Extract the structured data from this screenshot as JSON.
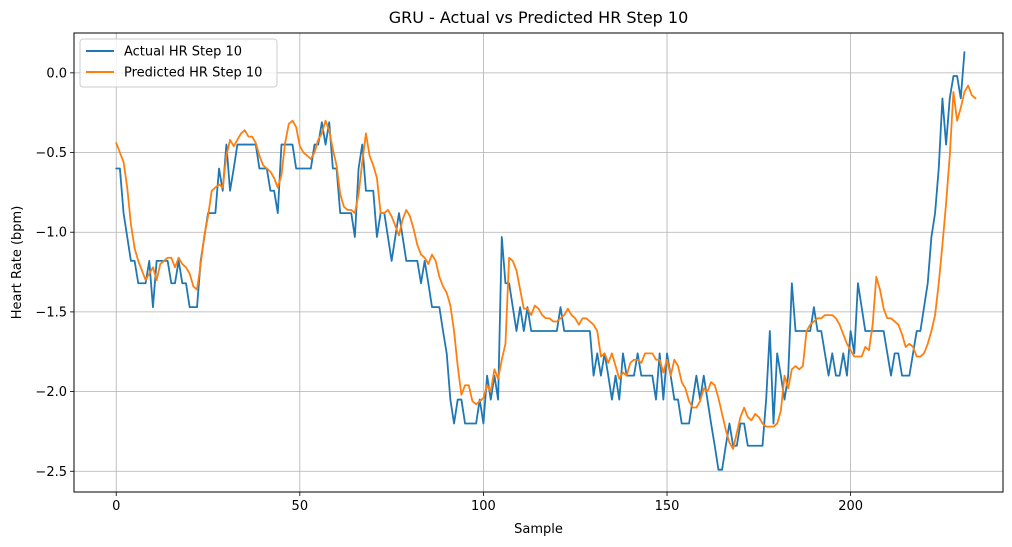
{
  "chart_data": {
    "type": "line",
    "title": "GRU - Actual vs Predicted HR Step 10",
    "xlabel": "Sample",
    "ylabel": "Heart Rate (bpm)",
    "xlim": [
      -11.5,
      241.5
    ],
    "ylim": [
      -2.63,
      0.25
    ],
    "xticks": [
      0,
      50,
      100,
      150,
      200
    ],
    "yticks": [
      -2.5,
      -2.0,
      -1.5,
      -1.0,
      -0.5,
      0.0
    ],
    "ytick_labels": [
      "−2.5",
      "−2.0",
      "−1.5",
      "−1.0",
      "−0.5",
      "0.0"
    ],
    "grid": true,
    "legend_position": "top-left",
    "series": [
      {
        "name": "Actual HR Step 10",
        "color": "#1f77b4",
        "values": [
          -0.6,
          -0.6,
          -0.88,
          -1.03,
          -1.18,
          -1.18,
          -1.32,
          -1.32,
          -1.32,
          -1.18,
          -1.47,
          -1.18,
          -1.18,
          -1.18,
          -1.18,
          -1.32,
          -1.32,
          -1.18,
          -1.32,
          -1.32,
          -1.47,
          -1.47,
          -1.47,
          -1.18,
          -1.03,
          -0.88,
          -0.88,
          -0.88,
          -0.6,
          -0.74,
          -0.45,
          -0.74,
          -0.6,
          -0.45,
          -0.45,
          -0.45,
          -0.45,
          -0.45,
          -0.45,
          -0.6,
          -0.6,
          -0.6,
          -0.74,
          -0.74,
          -0.88,
          -0.45,
          -0.45,
          -0.45,
          -0.45,
          -0.6,
          -0.6,
          -0.6,
          -0.6,
          -0.6,
          -0.45,
          -0.45,
          -0.31,
          -0.45,
          -0.31,
          -0.6,
          -0.6,
          -0.88,
          -0.88,
          -0.88,
          -0.88,
          -1.03,
          -0.6,
          -0.45,
          -0.74,
          -0.74,
          -0.74,
          -1.03,
          -0.88,
          -0.88,
          -1.03,
          -1.18,
          -1.03,
          -0.88,
          -1.03,
          -1.18,
          -1.18,
          -1.18,
          -1.18,
          -1.32,
          -1.18,
          -1.32,
          -1.47,
          -1.47,
          -1.47,
          -1.62,
          -1.76,
          -2.05,
          -2.2,
          -2.05,
          -2.05,
          -2.2,
          -2.2,
          -2.2,
          -2.2,
          -2.05,
          -2.2,
          -1.9,
          -2.05,
          -1.9,
          -2.05,
          -1.03,
          -1.32,
          -1.32,
          -1.47,
          -1.62,
          -1.47,
          -1.62,
          -1.47,
          -1.62,
          -1.62,
          -1.62,
          -1.62,
          -1.62,
          -1.62,
          -1.62,
          -1.62,
          -1.47,
          -1.62,
          -1.62,
          -1.62,
          -1.62,
          -1.62,
          -1.62,
          -1.62,
          -1.62,
          -1.9,
          -1.76,
          -1.9,
          -1.76,
          -1.9,
          -2.05,
          -1.9,
          -2.05,
          -1.76,
          -1.9,
          -1.9,
          -1.9,
          -1.76,
          -1.9,
          -1.9,
          -1.9,
          -1.9,
          -2.05,
          -1.76,
          -2.05,
          -1.76,
          -1.9,
          -2.05,
          -2.05,
          -2.2,
          -2.2,
          -2.2,
          -2.05,
          -1.9,
          -2.05,
          -1.9,
          -2.05,
          -2.2,
          -2.34,
          -2.49,
          -2.49,
          -2.34,
          -2.2,
          -2.34,
          -2.34,
          -2.2,
          -2.2,
          -2.34,
          -2.34,
          -2.34,
          -2.34,
          -2.34,
          -2.05,
          -1.62,
          -2.2,
          -1.76,
          -1.9,
          -2.05,
          -1.9,
          -1.32,
          -1.62,
          -1.62,
          -1.62,
          -1.62,
          -1.62,
          -1.47,
          -1.62,
          -1.62,
          -1.76,
          -1.9,
          -1.76,
          -1.9,
          -1.9,
          -1.76,
          -1.9,
          -1.62,
          -1.76,
          -1.32,
          -1.47,
          -1.62,
          -1.62,
          -1.62,
          -1.62,
          -1.62,
          -1.62,
          -1.76,
          -1.9,
          -1.76,
          -1.76,
          -1.9,
          -1.9,
          -1.9,
          -1.76,
          -1.62,
          -1.62,
          -1.47,
          -1.32,
          -1.03,
          -0.88,
          -0.6,
          -0.16,
          -0.45,
          -0.16,
          -0.02,
          -0.02,
          -0.16,
          0.13
        ]
      },
      {
        "name": "Predicted HR Step 10",
        "color": "#ff7f0e",
        "values": [
          -0.44,
          -0.5,
          -0.56,
          -0.72,
          -0.95,
          -1.1,
          -1.18,
          -1.24,
          -1.3,
          -1.26,
          -1.22,
          -1.3,
          -1.2,
          -1.18,
          -1.16,
          -1.16,
          -1.22,
          -1.16,
          -1.2,
          -1.22,
          -1.26,
          -1.34,
          -1.36,
          -1.2,
          -1.02,
          -0.9,
          -0.74,
          -0.72,
          -0.7,
          -0.72,
          -0.52,
          -0.42,
          -0.46,
          -0.42,
          -0.38,
          -0.36,
          -0.4,
          -0.4,
          -0.44,
          -0.52,
          -0.58,
          -0.6,
          -0.62,
          -0.66,
          -0.72,
          -0.64,
          -0.44,
          -0.32,
          -0.3,
          -0.34,
          -0.46,
          -0.5,
          -0.52,
          -0.54,
          -0.5,
          -0.42,
          -0.38,
          -0.3,
          -0.36,
          -0.48,
          -0.58,
          -0.76,
          -0.84,
          -0.86,
          -0.86,
          -0.88,
          -0.76,
          -0.56,
          -0.38,
          -0.52,
          -0.58,
          -0.66,
          -0.88,
          -0.88,
          -0.86,
          -0.9,
          -0.96,
          -1.02,
          -0.92,
          -0.86,
          -0.9,
          -0.98,
          -1.08,
          -1.14,
          -1.16,
          -1.2,
          -1.14,
          -1.18,
          -1.28,
          -1.34,
          -1.38,
          -1.46,
          -1.62,
          -1.84,
          -2.02,
          -1.96,
          -1.96,
          -2.06,
          -2.08,
          -2.06,
          -2.04,
          -1.96,
          -2.0,
          -1.86,
          -1.92,
          -1.8,
          -1.7,
          -1.16,
          -1.18,
          -1.24,
          -1.36,
          -1.48,
          -1.48,
          -1.52,
          -1.46,
          -1.48,
          -1.52,
          -1.54,
          -1.54,
          -1.56,
          -1.56,
          -1.54,
          -1.52,
          -1.48,
          -1.52,
          -1.54,
          -1.58,
          -1.54,
          -1.54,
          -1.56,
          -1.58,
          -1.62,
          -1.78,
          -1.76,
          -1.82,
          -1.76,
          -1.84,
          -1.92,
          -1.88,
          -1.9,
          -1.82,
          -1.8,
          -1.8,
          -1.82,
          -1.76,
          -1.76,
          -1.76,
          -1.8,
          -1.8,
          -1.88,
          -1.8,
          -1.9,
          -1.8,
          -1.84,
          -1.94,
          -1.98,
          -2.06,
          -2.1,
          -2.1,
          -2.06,
          -1.98,
          -2.0,
          -1.94,
          -1.96,
          -2.04,
          -2.14,
          -2.24,
          -2.32,
          -2.36,
          -2.26,
          -2.16,
          -2.1,
          -2.16,
          -2.18,
          -2.14,
          -2.16,
          -2.2,
          -2.22,
          -2.22,
          -2.22,
          -2.2,
          -2.12,
          -1.9,
          -1.98,
          -1.86,
          -1.84,
          -1.86,
          -1.84,
          -1.62,
          -1.58,
          -1.56,
          -1.54,
          -1.54,
          -1.52,
          -1.52,
          -1.52,
          -1.54,
          -1.58,
          -1.64,
          -1.7,
          -1.74,
          -1.78,
          -1.78,
          -1.78,
          -1.72,
          -1.74,
          -1.58,
          -1.28,
          -1.36,
          -1.48,
          -1.54,
          -1.54,
          -1.56,
          -1.58,
          -1.64,
          -1.72,
          -1.7,
          -1.72,
          -1.78,
          -1.78,
          -1.76,
          -1.7,
          -1.62,
          -1.52,
          -1.32,
          -1.08,
          -0.82,
          -0.52,
          -0.12,
          -0.3,
          -0.22,
          -0.12,
          -0.08,
          -0.14,
          -0.16
        ]
      }
    ]
  }
}
